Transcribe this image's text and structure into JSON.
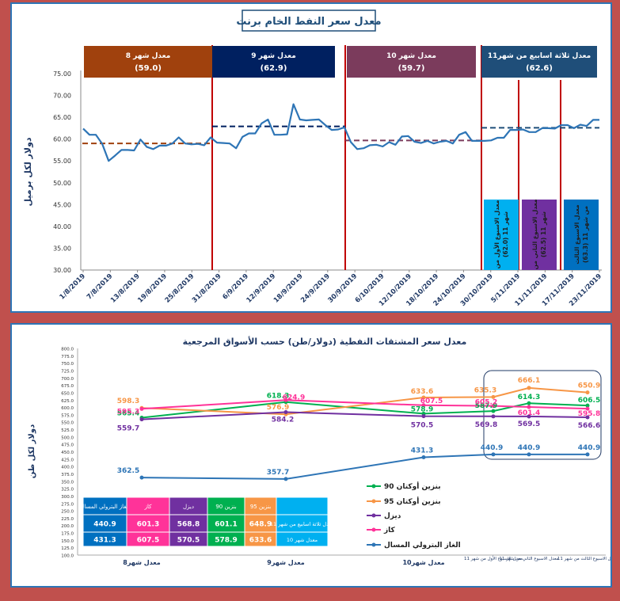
{
  "chart_data": [
    {
      "type": "line",
      "title": "معدل سعر النفط الخام برنت",
      "ylabel": "دولار لكل برميل",
      "ylim": [
        30,
        75
      ],
      "yticks": [
        "75.00",
        "70.00",
        "65.00",
        "60.00",
        "55.00",
        "50.00",
        "45.00",
        "40.00",
        "35.00",
        "30.00"
      ],
      "xticks": [
        "1/8/2019",
        "7/8/2019",
        "13/8/2019",
        "19/8/2019",
        "25/8/2019",
        "31/8/2019",
        "6/9/2019",
        "12/9/2019",
        "18/9/2019",
        "24/9/2019",
        "30/9/2019",
        "6/10/2019",
        "12/10/2019",
        "18/10/2019",
        "24/10/2019",
        "30/10/2019",
        "5/11/2019",
        "11/11/2019",
        "17/11/2019",
        "23/11/2019"
      ],
      "series": [
        {
          "color": "#2e75b6",
          "values": [
            62.4,
            61.0,
            61.0,
            58.9,
            55.0,
            56.2,
            57.5,
            57.5,
            57.4,
            59.9,
            58.2,
            57.7,
            58.5,
            58.5,
            59.0,
            60.4,
            59.0,
            58.8,
            58.9,
            58.6,
            60.4,
            59.2,
            59.1,
            59.0,
            57.9,
            60.5,
            61.3,
            61.3,
            63.6,
            64.5,
            61.0,
            61.0,
            61.1,
            68.0,
            64.5,
            64.3,
            64.4,
            64.5,
            63.2,
            62.1,
            62.2,
            62.7,
            59.3,
            57.7,
            57.9,
            58.6,
            58.7,
            58.3,
            59.3,
            58.7,
            60.6,
            60.7,
            59.4,
            59.1,
            59.6,
            59.0,
            59.4,
            59.6,
            59.0,
            61.0,
            61.6,
            59.6,
            59.6,
            59.6,
            59.7,
            60.3,
            60.3,
            62.1,
            62.1,
            62.2,
            61.6,
            61.6,
            62.5,
            62.5,
            62.4,
            63.2,
            63.2,
            62.5,
            63.3,
            63.0,
            64.4,
            64.4
          ]
        }
      ],
      "averages": [
        {
          "label": "معدل شهر 8",
          "value": "(59.0)",
          "color": "#a0410d"
        },
        {
          "label": "معدل شهر 9",
          "value": "(62.9)",
          "color": "#002060"
        },
        {
          "label": "معدل شهر 10",
          "value": "(59.7)",
          "color": "#7b3b5c"
        },
        {
          "label": "معدل ثلاثة اسابيع من شهر11",
          "value": "(62.6)",
          "color": "#1f4e79"
        }
      ],
      "weekly_boxes": [
        {
          "lines": [
            "معدل الاسبوع الأول من",
            "شهر 11 (62.0)"
          ],
          "color": "#00b0f0"
        },
        {
          "lines": [
            "معدل الاسبوع الثاني من",
            "شهر 11 (62.5)"
          ],
          "color": "#7030a0"
        },
        {
          "lines": [
            "معدل الاسبوع الثالث",
            "من شهر 11 (63.3)"
          ],
          "color": "#0070c0"
        }
      ]
    },
    {
      "type": "line",
      "title": "معدل سعر المشتقات النفطية (دولار/طن) حسب الأسواق المرجعية",
      "ylabel": "دولار لكل طن",
      "ylim": [
        100,
        800
      ],
      "yticks": [
        "800.0",
        "775.0",
        "750.0",
        "725.0",
        "700.0",
        "675.0",
        "650.0",
        "625.0",
        "600.0",
        "575.0",
        "550.0",
        "525.0",
        "500.0",
        "475.0",
        "450.0",
        "425.0",
        "400.0",
        "375.0",
        "350.0",
        "325.0",
        "300.0",
        "275.0",
        "250.0",
        "225.0",
        "200.0",
        "175.0",
        "150.0",
        "125.0",
        "100.0"
      ],
      "categories": [
        "معدل شهر8",
        "معدل شهر9",
        "معدل شهر10",
        "معدل الاسبوع الأول من شهر 11",
        "معدل الاسبوع الثاني من شهر 11",
        "معدل الاسبوع الثالث من شهر 11"
      ],
      "series": [
        {
          "name": "بنزين أوكتان 90",
          "color": "#00b050",
          "values": [
            565.4,
            618.3,
            578.9,
            587.9,
            614.3,
            606.5
          ],
          "labels": [
            "565.4",
            "618.3",
            "578.9",
            "587.9",
            "614.3",
            "606.5"
          ]
        },
        {
          "name": "بنزين أوكتان 95",
          "color": "#f79646",
          "values": [
            598.3,
            576.9,
            633.6,
            635.3,
            666.1,
            650.9
          ],
          "labels": [
            "598.3",
            "576.9",
            "633.6",
            "635.3",
            "666.1",
            "650.9"
          ]
        },
        {
          "name": "ديزل",
          "color": "#7030a0",
          "values": [
            559.7,
            584.2,
            570.5,
            569.8,
            569.5,
            566.6
          ],
          "labels": [
            "559.7",
            "584.2",
            "570.5",
            "569.8",
            "569.5",
            "566.6"
          ]
        },
        {
          "name": "كاز",
          "color": "#ff3399",
          "values": [
            595.3,
            624.9,
            607.5,
            605.2,
            601.4,
            595.8
          ],
          "labels": [
            "595.3",
            "624.9",
            "607.5",
            "605.2",
            "601.4",
            "595.8"
          ]
        },
        {
          "name": "الغاز البترولي المسال",
          "color": "#2e75b6",
          "values": [
            362.5,
            357.7,
            431.3,
            440.9,
            440.9,
            440.9
          ],
          "labels": [
            "362.5",
            "357.7",
            "431.3",
            "440.9",
            "440.9",
            "440.9"
          ]
        }
      ],
      "table": {
        "headers": [
          "الغاز البترولي المسال",
          "كاز",
          "ديزل",
          "بنزين 90",
          "بنزين 95",
          ""
        ],
        "rows": [
          {
            "label": "معدل ثلاثة اسابيع من شهر 11",
            "values": [
              "440.9",
              "601.3",
              "568.8",
              "601.1",
              "648.9"
            ]
          },
          {
            "label": "معدل شهر 10",
            "values": [
              "431.3",
              "607.5",
              "570.5",
              "578.9",
              "633.6"
            ]
          }
        ]
      }
    }
  ]
}
